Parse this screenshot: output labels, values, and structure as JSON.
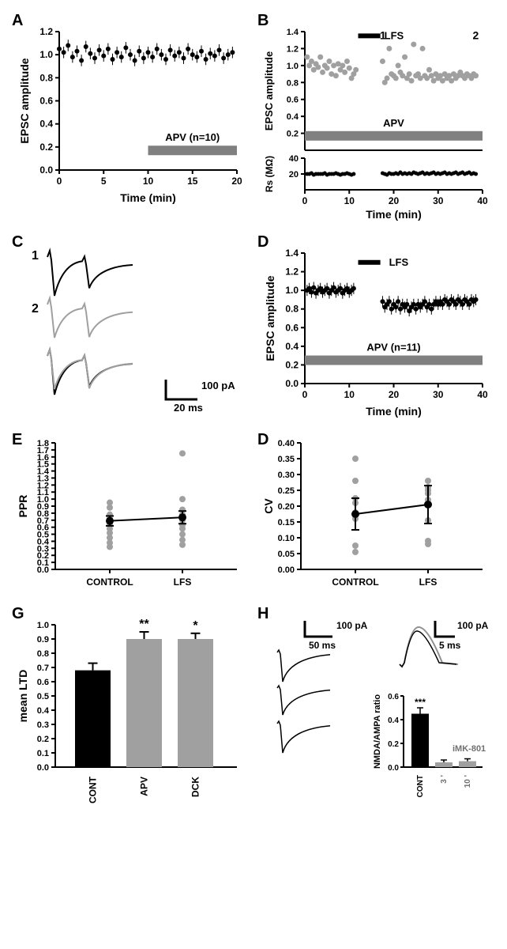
{
  "panels": {
    "A": {
      "label": "A",
      "type": "scatter",
      "ylabel": "EPSC amplitude",
      "xlabel": "Time (min)",
      "ylim": [
        0,
        1.2
      ],
      "ytick_step": 0.2,
      "xlim": [
        0,
        20
      ],
      "xtick_step": 5,
      "drug_bar": {
        "label": "APV (n=10)",
        "start": 10,
        "end": 20,
        "y": 0.17
      },
      "data_color": "#000000",
      "points": [
        {
          "x": 0,
          "y": 1.05
        },
        {
          "x": 0.5,
          "y": 1.02
        },
        {
          "x": 1,
          "y": 1.08
        },
        {
          "x": 1.5,
          "y": 0.98
        },
        {
          "x": 2,
          "y": 1.03
        },
        {
          "x": 2.5,
          "y": 0.95
        },
        {
          "x": 3,
          "y": 1.07
        },
        {
          "x": 3.5,
          "y": 1.01
        },
        {
          "x": 4,
          "y": 0.97
        },
        {
          "x": 4.5,
          "y": 1.04
        },
        {
          "x": 5,
          "y": 0.99
        },
        {
          "x": 5.5,
          "y": 1.05
        },
        {
          "x": 6,
          "y": 0.96
        },
        {
          "x": 6.5,
          "y": 1.02
        },
        {
          "x": 7,
          "y": 0.98
        },
        {
          "x": 7.5,
          "y": 1.06
        },
        {
          "x": 8,
          "y": 1.0
        },
        {
          "x": 8.5,
          "y": 0.95
        },
        {
          "x": 9,
          "y": 1.03
        },
        {
          "x": 9.5,
          "y": 0.97
        },
        {
          "x": 10,
          "y": 1.02
        },
        {
          "x": 10.5,
          "y": 0.98
        },
        {
          "x": 11,
          "y": 1.05
        },
        {
          "x": 11.5,
          "y": 1.0
        },
        {
          "x": 12,
          "y": 0.96
        },
        {
          "x": 12.5,
          "y": 1.04
        },
        {
          "x": 13,
          "y": 0.99
        },
        {
          "x": 13.5,
          "y": 1.02
        },
        {
          "x": 14,
          "y": 0.97
        },
        {
          "x": 14.5,
          "y": 1.05
        },
        {
          "x": 15,
          "y": 1.0
        },
        {
          "x": 15.5,
          "y": 0.98
        },
        {
          "x": 16,
          "y": 1.03
        },
        {
          "x": 16.5,
          "y": 0.96
        },
        {
          "x": 17,
          "y": 1.01
        },
        {
          "x": 17.5,
          "y": 0.99
        },
        {
          "x": 18,
          "y": 1.04
        },
        {
          "x": 18.5,
          "y": 0.97
        },
        {
          "x": 19,
          "y": 1.0
        },
        {
          "x": 19.5,
          "y": 1.02
        }
      ],
      "error": 0.05
    },
    "B": {
      "label": "B",
      "type": "dual-scatter",
      "ylabel_top": "EPSC amplitude",
      "ylabel_bot": "Rs (MΩ)",
      "xlabel": "Time (min)",
      "ylim_top": [
        0,
        1.4
      ],
      "ytick_top": [
        0.2,
        0.4,
        0.6,
        0.8,
        1.0,
        1.2,
        1.4
      ],
      "ylim_bot": [
        0,
        40
      ],
      "ytick_bot": [
        20,
        40
      ],
      "xlim": [
        0,
        40
      ],
      "xtick_step": 10,
      "lfs_bar": {
        "label": "LFS",
        "start": 12,
        "end": 17,
        "y": 1.35
      },
      "marks": [
        {
          "text": "1",
          "x": 24
        },
        {
          "text": "2",
          "x": 36
        }
      ],
      "drug_bar": {
        "label": "APV",
        "start": 0,
        "end": 40,
        "y": 0.17
      },
      "data_color_top": "#a0a0a0",
      "data_color_bot": "#000000",
      "points_top": [
        {
          "x": 0.5,
          "y": 1.1
        },
        {
          "x": 1,
          "y": 1.0
        },
        {
          "x": 1.5,
          "y": 1.05
        },
        {
          "x": 2,
          "y": 0.95
        },
        {
          "x": 2.5,
          "y": 1.02
        },
        {
          "x": 3,
          "y": 0.98
        },
        {
          "x": 3.5,
          "y": 1.1
        },
        {
          "x": 4,
          "y": 0.92
        },
        {
          "x": 4.5,
          "y": 1.0
        },
        {
          "x": 5,
          "y": 0.97
        },
        {
          "x": 5.5,
          "y": 1.05
        },
        {
          "x": 6,
          "y": 0.9
        },
        {
          "x": 6.5,
          "y": 1.0
        },
        {
          "x": 7,
          "y": 0.88
        },
        {
          "x": 7.5,
          "y": 1.02
        },
        {
          "x": 8,
          "y": 0.95
        },
        {
          "x": 8.5,
          "y": 1.0
        },
        {
          "x": 9,
          "y": 0.92
        },
        {
          "x": 9.5,
          "y": 1.05
        },
        {
          "x": 10,
          "y": 0.97
        },
        {
          "x": 10.5,
          "y": 0.85
        },
        {
          "x": 11,
          "y": 0.9
        },
        {
          "x": 11.5,
          "y": 0.95
        },
        {
          "x": 17.5,
          "y": 1.05
        },
        {
          "x": 18,
          "y": 0.8
        },
        {
          "x": 18.5,
          "y": 0.85
        },
        {
          "x": 19,
          "y": 1.2
        },
        {
          "x": 19.5,
          "y": 0.9
        },
        {
          "x": 20,
          "y": 0.88
        },
        {
          "x": 20.5,
          "y": 0.85
        },
        {
          "x": 21,
          "y": 1.0
        },
        {
          "x": 21.5,
          "y": 0.92
        },
        {
          "x": 22,
          "y": 0.88
        },
        {
          "x": 22.5,
          "y": 1.1
        },
        {
          "x": 23,
          "y": 0.85
        },
        {
          "x": 23.5,
          "y": 0.9
        },
        {
          "x": 24,
          "y": 0.82
        },
        {
          "x": 24.5,
          "y": 1.25
        },
        {
          "x": 25,
          "y": 0.88
        },
        {
          "x": 25.5,
          "y": 0.9
        },
        {
          "x": 26,
          "y": 0.85
        },
        {
          "x": 26.5,
          "y": 1.2
        },
        {
          "x": 27,
          "y": 0.88
        },
        {
          "x": 27.5,
          "y": 0.85
        },
        {
          "x": 28,
          "y": 0.95
        },
        {
          "x": 28.5,
          "y": 0.88
        },
        {
          "x": 29,
          "y": 0.82
        },
        {
          "x": 29.5,
          "y": 0.9
        },
        {
          "x": 30,
          "y": 0.85
        },
        {
          "x": 30.5,
          "y": 0.88
        },
        {
          "x": 31,
          "y": 0.82
        },
        {
          "x": 31.5,
          "y": 0.9
        },
        {
          "x": 32,
          "y": 0.85
        },
        {
          "x": 32.5,
          "y": 0.88
        },
        {
          "x": 33,
          "y": 0.82
        },
        {
          "x": 33.5,
          "y": 0.9
        },
        {
          "x": 34,
          "y": 0.85
        },
        {
          "x": 34.5,
          "y": 0.88
        },
        {
          "x": 35,
          "y": 0.92
        },
        {
          "x": 35.5,
          "y": 0.88
        },
        {
          "x": 36,
          "y": 0.85
        },
        {
          "x": 36.5,
          "y": 0.9
        },
        {
          "x": 37,
          "y": 0.88
        },
        {
          "x": 37.5,
          "y": 0.85
        },
        {
          "x": 38,
          "y": 0.9
        },
        {
          "x": 38.5,
          "y": 0.88
        }
      ],
      "points_bot": [
        {
          "x": 0.5,
          "y": 20
        },
        {
          "x": 1,
          "y": 20
        },
        {
          "x": 1.5,
          "y": 21
        },
        {
          "x": 2,
          "y": 19
        },
        {
          "x": 2.5,
          "y": 20
        },
        {
          "x": 3,
          "y": 20
        },
        {
          "x": 3.5,
          "y": 20
        },
        {
          "x": 4,
          "y": 20
        },
        {
          "x": 4.5,
          "y": 21
        },
        {
          "x": 5,
          "y": 19
        },
        {
          "x": 5.5,
          "y": 20
        },
        {
          "x": 6,
          "y": 20
        },
        {
          "x": 6.5,
          "y": 20
        },
        {
          "x": 7,
          "y": 21
        },
        {
          "x": 7.5,
          "y": 20
        },
        {
          "x": 8,
          "y": 19
        },
        {
          "x": 8.5,
          "y": 20
        },
        {
          "x": 9,
          "y": 20
        },
        {
          "x": 9.5,
          "y": 21
        },
        {
          "x": 10,
          "y": 20
        },
        {
          "x": 10.5,
          "y": 19
        },
        {
          "x": 11,
          "y": 20
        },
        {
          "x": 17.5,
          "y": 21
        },
        {
          "x": 18,
          "y": 20
        },
        {
          "x": 18.5,
          "y": 19
        },
        {
          "x": 19,
          "y": 21
        },
        {
          "x": 19.5,
          "y": 20
        },
        {
          "x": 20,
          "y": 20
        },
        {
          "x": 20.5,
          "y": 21
        },
        {
          "x": 21,
          "y": 20
        },
        {
          "x": 21.5,
          "y": 22
        },
        {
          "x": 22,
          "y": 20
        },
        {
          "x": 22.5,
          "y": 21
        },
        {
          "x": 23,
          "y": 20
        },
        {
          "x": 23.5,
          "y": 21
        },
        {
          "x": 24,
          "y": 20
        },
        {
          "x": 24.5,
          "y": 22
        },
        {
          "x": 25,
          "y": 21
        },
        {
          "x": 25.5,
          "y": 20
        },
        {
          "x": 26,
          "y": 21
        },
        {
          "x": 26.5,
          "y": 22
        },
        {
          "x": 27,
          "y": 20
        },
        {
          "x": 27.5,
          "y": 21
        },
        {
          "x": 28,
          "y": 20
        },
        {
          "x": 28.5,
          "y": 21
        },
        {
          "x": 29,
          "y": 22
        },
        {
          "x": 29.5,
          "y": 20
        },
        {
          "x": 30,
          "y": 21
        },
        {
          "x": 30.5,
          "y": 20
        },
        {
          "x": 31,
          "y": 21
        },
        {
          "x": 31.5,
          "y": 22
        },
        {
          "x": 32,
          "y": 20
        },
        {
          "x": 32.5,
          "y": 21
        },
        {
          "x": 33,
          "y": 20
        },
        {
          "x": 33.5,
          "y": 21
        },
        {
          "x": 34,
          "y": 22
        },
        {
          "x": 34.5,
          "y": 20
        },
        {
          "x": 35,
          "y": 21
        },
        {
          "x": 35.5,
          "y": 22
        },
        {
          "x": 36,
          "y": 20
        },
        {
          "x": 36.5,
          "y": 21
        },
        {
          "x": 37,
          "y": 22
        },
        {
          "x": 37.5,
          "y": 20
        },
        {
          "x": 38,
          "y": 21
        },
        {
          "x": 38.5,
          "y": 20
        }
      ]
    },
    "C": {
      "label": "C",
      "type": "traces",
      "scale_bar": {
        "v": "100 pA",
        "h": "20 ms"
      },
      "labels": [
        "1",
        "2"
      ],
      "trace_colors": [
        "#000000",
        "#a0a0a0"
      ]
    },
    "D": {
      "label": "D",
      "type": "scatter",
      "ylabel": "EPSC amplitude",
      "xlabel": "Time (min)",
      "ylim": [
        0,
        1.4
      ],
      "ytick_step": 0.2,
      "xlim": [
        0,
        40
      ],
      "xtick_step": 10,
      "lfs_bar": {
        "label": "LFS",
        "start": 12,
        "end": 17,
        "y": 1.3
      },
      "drug_bar": {
        "label": "APV  (n=11)",
        "start": 0,
        "end": 40,
        "y": 0.25
      },
      "data_color": "#000000",
      "points": [
        {
          "x": 0.5,
          "y": 1.0
        },
        {
          "x": 1,
          "y": 1.02
        },
        {
          "x": 1.5,
          "y": 0.98
        },
        {
          "x": 2,
          "y": 1.03
        },
        {
          "x": 2.5,
          "y": 0.97
        },
        {
          "x": 3,
          "y": 1.0
        },
        {
          "x": 3.5,
          "y": 1.02
        },
        {
          "x": 4,
          "y": 0.98
        },
        {
          "x": 4.5,
          "y": 1.0
        },
        {
          "x": 5,
          "y": 1.02
        },
        {
          "x": 5.5,
          "y": 0.97
        },
        {
          "x": 6,
          "y": 1.0
        },
        {
          "x": 6.5,
          "y": 1.03
        },
        {
          "x": 7,
          "y": 0.98
        },
        {
          "x": 7.5,
          "y": 1.0
        },
        {
          "x": 8,
          "y": 1.02
        },
        {
          "x": 8.5,
          "y": 0.97
        },
        {
          "x": 9,
          "y": 1.0
        },
        {
          "x": 9.5,
          "y": 1.02
        },
        {
          "x": 10,
          "y": 0.98
        },
        {
          "x": 10.5,
          "y": 1.0
        },
        {
          "x": 11,
          "y": 1.02
        },
        {
          "x": 17.5,
          "y": 0.88
        },
        {
          "x": 18,
          "y": 0.82
        },
        {
          "x": 18.5,
          "y": 0.85
        },
        {
          "x": 19,
          "y": 0.88
        },
        {
          "x": 19.5,
          "y": 0.8
        },
        {
          "x": 20,
          "y": 0.85
        },
        {
          "x": 20.5,
          "y": 0.82
        },
        {
          "x": 21,
          "y": 0.88
        },
        {
          "x": 21.5,
          "y": 0.8
        },
        {
          "x": 22,
          "y": 0.85
        },
        {
          "x": 22.5,
          "y": 0.82
        },
        {
          "x": 23,
          "y": 0.85
        },
        {
          "x": 23.5,
          "y": 0.78
        },
        {
          "x": 24,
          "y": 0.82
        },
        {
          "x": 24.5,
          "y": 0.85
        },
        {
          "x": 25,
          "y": 0.8
        },
        {
          "x": 25.5,
          "y": 0.85
        },
        {
          "x": 26,
          "y": 0.82
        },
        {
          "x": 26.5,
          "y": 0.85
        },
        {
          "x": 27,
          "y": 0.88
        },
        {
          "x": 27.5,
          "y": 0.82
        },
        {
          "x": 28,
          "y": 0.85
        },
        {
          "x": 28.5,
          "y": 0.8
        },
        {
          "x": 29,
          "y": 0.85
        },
        {
          "x": 29.5,
          "y": 0.88
        },
        {
          "x": 30,
          "y": 0.85
        },
        {
          "x": 30.5,
          "y": 0.88
        },
        {
          "x": 31,
          "y": 0.85
        },
        {
          "x": 31.5,
          "y": 0.9
        },
        {
          "x": 32,
          "y": 0.88
        },
        {
          "x": 32.5,
          "y": 0.85
        },
        {
          "x": 33,
          "y": 0.9
        },
        {
          "x": 33.5,
          "y": 0.88
        },
        {
          "x": 34,
          "y": 0.85
        },
        {
          "x": 34.5,
          "y": 0.9
        },
        {
          "x": 35,
          "y": 0.88
        },
        {
          "x": 35.5,
          "y": 0.85
        },
        {
          "x": 36,
          "y": 0.9
        },
        {
          "x": 36.5,
          "y": 0.88
        },
        {
          "x": 37,
          "y": 0.85
        },
        {
          "x": 37.5,
          "y": 0.9
        },
        {
          "x": 38,
          "y": 0.88
        },
        {
          "x": 38.5,
          "y": 0.9
        }
      ],
      "error": 0.06
    },
    "E": {
      "label": "E",
      "type": "paired-scatter",
      "ylabel": "PPR",
      "categories": [
        "CONTROL",
        "LFS"
      ],
      "ylim": [
        0.0,
        1.8
      ],
      "ytick_step": 0.1,
      "scatter_color": "#a0a0a0",
      "mean_color": "#000000",
      "scatter": [
        [
          0.32,
          0.38,
          0.45,
          0.52,
          0.58,
          0.65,
          0.72,
          0.78,
          0.88,
          0.95
        ],
        [
          0.35,
          0.42,
          0.5,
          0.58,
          0.63,
          0.7,
          0.78,
          0.85,
          1.0,
          1.65
        ]
      ],
      "means": [
        0.69,
        0.74
      ],
      "errors": [
        0.07,
        0.09
      ]
    },
    "F": {
      "label": "D",
      "type": "paired-scatter",
      "ylabel": "CV",
      "categories": [
        "CONTROL",
        "LFS"
      ],
      "ylim": [
        0.0,
        0.4
      ],
      "ytick_step": 0.05,
      "scatter_color": "#a0a0a0",
      "mean_color": "#000000",
      "scatter": [
        [
          0.055,
          0.075,
          0.16,
          0.18,
          0.21,
          0.225,
          0.28,
          0.35
        ],
        [
          0.08,
          0.09,
          0.155,
          0.22,
          0.24,
          0.25,
          0.26,
          0.28
        ]
      ],
      "means": [
        0.175,
        0.205
      ],
      "errors": [
        0.05,
        0.06
      ]
    },
    "G": {
      "label": "G",
      "type": "bar",
      "ylabel": "mean LTD",
      "ylim": [
        0.0,
        1.0
      ],
      "ytick_step": 0.1,
      "categories": [
        "CONT",
        "APV",
        "DCK"
      ],
      "values": [
        0.68,
        0.9,
        0.9
      ],
      "errors": [
        0.05,
        0.05,
        0.04
      ],
      "colors": [
        "#000000",
        "#a0a0a0",
        "#a0a0a0"
      ],
      "sig": [
        "",
        "**",
        "*"
      ]
    },
    "H": {
      "label": "H",
      "type": "composite",
      "scale1": {
        "v": "100 pA",
        "h": "50 ms"
      },
      "scale2": {
        "v": "100 pA",
        "h": "5 ms"
      },
      "bar_chart": {
        "ylabel": "NMDA/AMPA ratio",
        "ylim": [
          0,
          0.6
        ],
        "ytick_step": 0.2,
        "categories": [
          "CONT",
          "3 '",
          "10 '"
        ],
        "values": [
          0.45,
          0.04,
          0.05
        ],
        "errors": [
          0.05,
          0.02,
          0.02
        ],
        "colors": [
          "#000000",
          "#a0a0a0",
          "#a0a0a0"
        ],
        "sig": [
          "***",
          "",
          ""
        ],
        "annot": "iMK-801",
        "annot_color": "#707070"
      }
    }
  }
}
